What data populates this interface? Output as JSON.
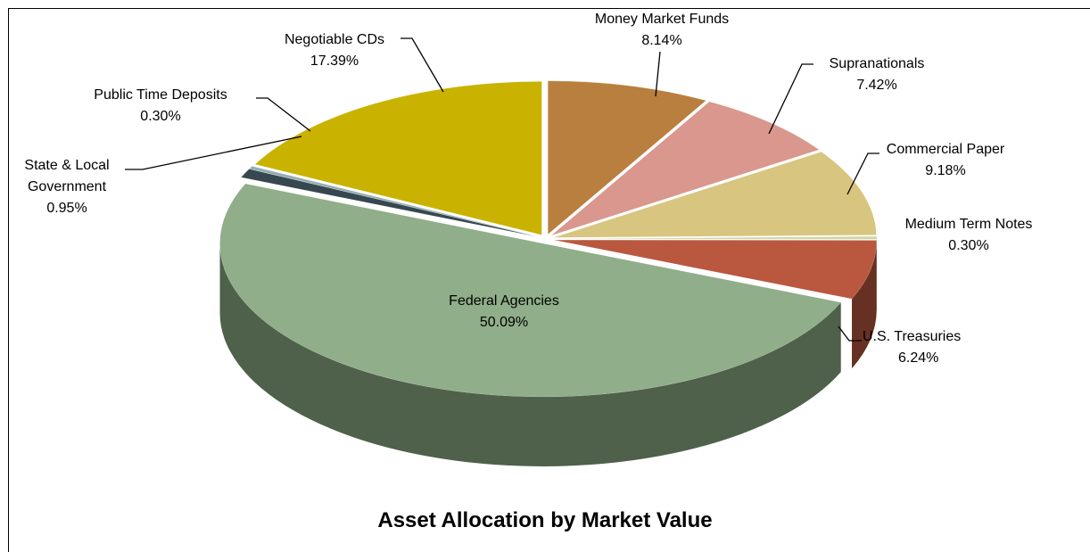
{
  "chart_data": {
    "type": "pie",
    "title": "Asset Allocation by Market Value",
    "categories": [
      "Money Market Funds",
      "Supranationals",
      "Commercial Paper",
      "Medium Term Notes",
      "U.S. Treasuries",
      "Federal Agencies",
      "State & Local Government",
      "Public Time Deposits",
      "Negotiable CDs"
    ],
    "values": [
      8.14,
      7.42,
      9.18,
      0.3,
      6.24,
      50.09,
      0.95,
      0.3,
      17.39
    ],
    "value_labels": [
      "8.14%",
      "7.42%",
      "9.18%",
      "0.30%",
      "6.24%",
      "50.09%",
      "0.95%",
      "0.30%",
      "17.39%"
    ],
    "colors": [
      "#b97f3e",
      "#d9978d",
      "#d8c57f",
      "#cbd8a2",
      "#b9583f",
      "#8fae89",
      "#37474f",
      "#93adb3",
      "#c9b200"
    ]
  }
}
